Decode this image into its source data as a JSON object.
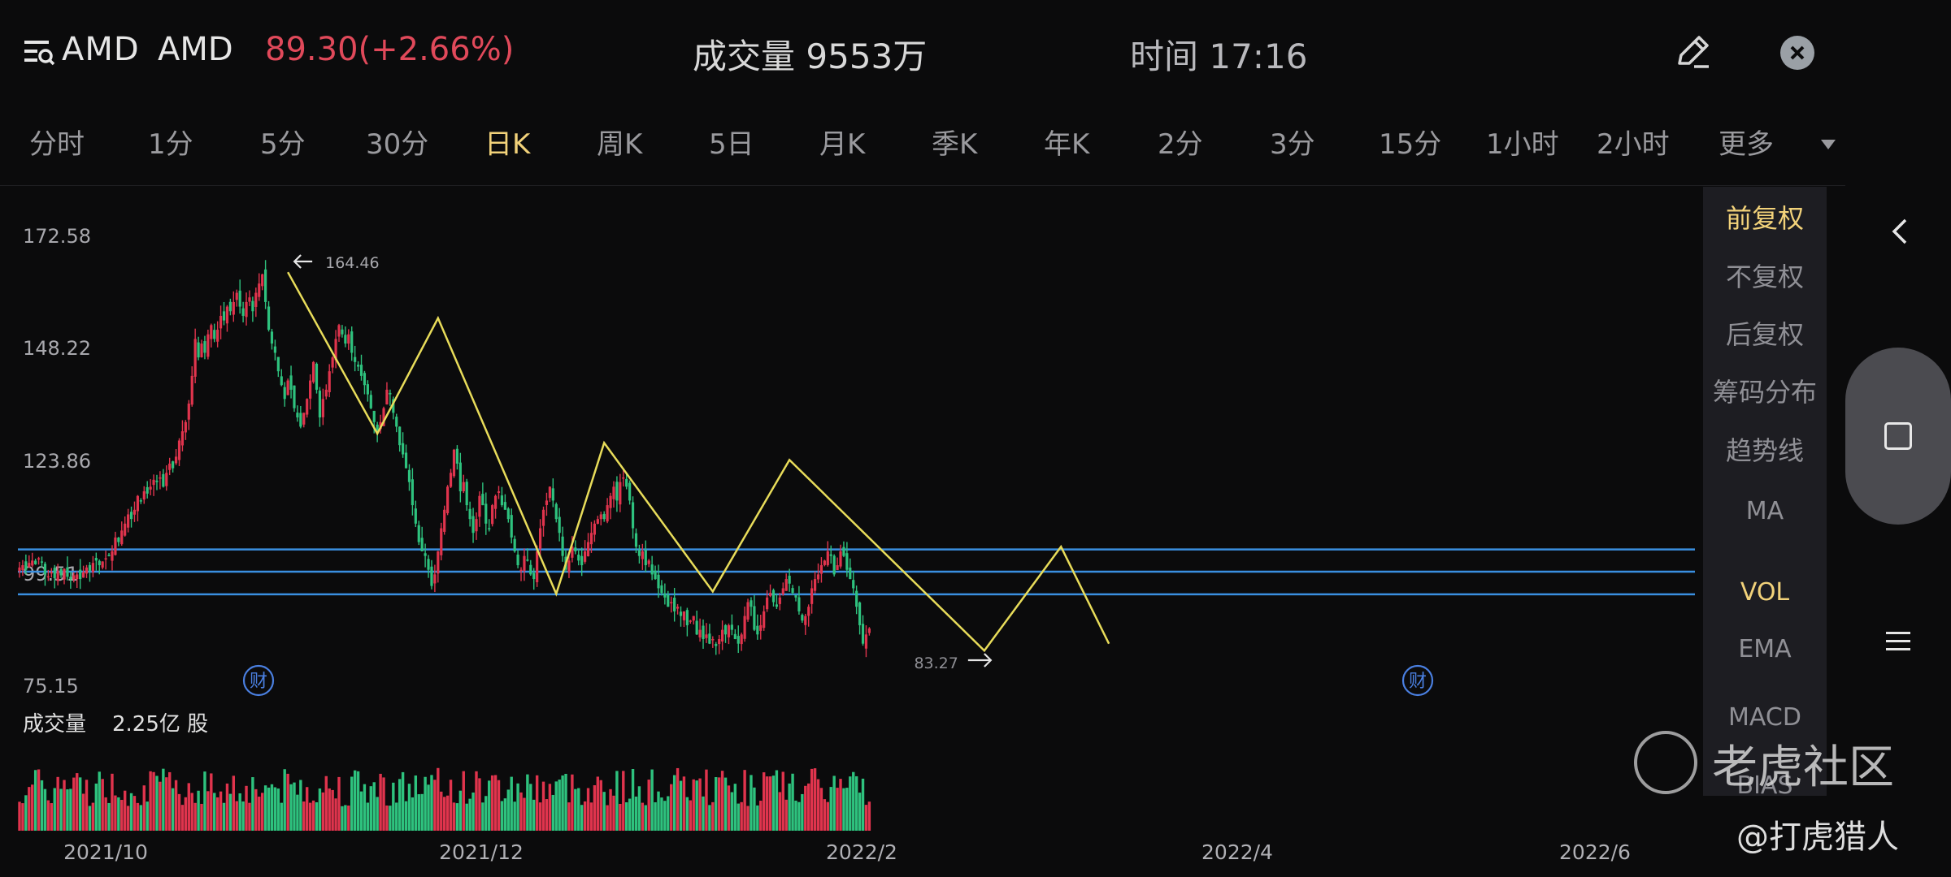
{
  "header": {
    "ticker": "AMD",
    "name": "AMD",
    "price_change": "89.30(+2.66%)",
    "volume_label": "成交量",
    "volume_value": "9553万",
    "time_label": "时间",
    "time_value": "17:16",
    "icons": {
      "menu": "menu-search-icon",
      "edit": "pencil-icon",
      "close": "close-icon"
    }
  },
  "period_tabs": [
    "分时",
    "1分",
    "5分",
    "30分",
    "日K",
    "周K",
    "5日",
    "月K",
    "季K",
    "年K",
    "2分",
    "3分",
    "15分",
    "1小时",
    "2小时",
    "更多"
  ],
  "active_tab": "日K",
  "side_panel": {
    "items": [
      "前复权",
      "不复权",
      "后复权",
      "筹码分布",
      "趋势线"
    ],
    "active": "前复权",
    "indicators": [
      "MA",
      "VOL",
      "EMA",
      "MACD",
      "BIAS"
    ],
    "active_indicator": "VOL"
  },
  "nav": {
    "back": "chevron-left-icon",
    "home": "square-icon",
    "menu": "hamburger-icon"
  },
  "watermark": {
    "brand": "老虎社区",
    "user": "@打虎猎人"
  },
  "colors": {
    "up": "#e0344d",
    "down": "#2ec27e",
    "hline": "#3a8fe0",
    "trend": "#e8dc5a",
    "accent": "#f2d27a"
  },
  "chart_data": {
    "type": "candlestick",
    "y_ticks": [
      "172.58",
      "148.22",
      "123.86",
      "99.51",
      "75.15"
    ],
    "ylim": [
      75.15,
      172.58
    ],
    "x_ticks": [
      "2021/10",
      "2021/12",
      "2022/2",
      "2022/4",
      "2022/6"
    ],
    "max_label": "164.46",
    "min_label": "83.27",
    "volume_label": "成交量",
    "volume_value": "2.25亿 股",
    "earnings_marker": "财",
    "horizontal_levels": [
      104.4,
      99.6,
      94.7
    ],
    "trend_points": [
      [
        84,
        164.46
      ],
      [
        112,
        129.5
      ],
      [
        131,
        154.5
      ],
      [
        168,
        94.8
      ],
      [
        183,
        127.5
      ],
      [
        217,
        95.3
      ],
      [
        241,
        123.8
      ],
      [
        302,
        82.5
      ],
      [
        326,
        105.0
      ],
      [
        341,
        84.0
      ]
    ],
    "prices": [
      100.5,
      101.0,
      100.0,
      101.5,
      102.0,
      101.2,
      102.5,
      101.8,
      99.0,
      98.6,
      99.5,
      98.2,
      99.8,
      98.8,
      100.2,
      98.5,
      98.0,
      98.8,
      99.0,
      98.0,
      99.5,
      100.5,
      99.8,
      101.5,
      102.0,
      101.0,
      101.8,
      102.5,
      103.0,
      104.0,
      107.0,
      106.0,
      108.5,
      110.0,
      112.0,
      111.0,
      113.0,
      116.0,
      115.0,
      117.0,
      116.5,
      118.0,
      119.5,
      119.0,
      120.0,
      118.0,
      121.0,
      123.0,
      122.0,
      124.5,
      128.0,
      130.0,
      132.0,
      136.0,
      142.0,
      150.0,
      146.0,
      149.0,
      147.0,
      151.0,
      153.0,
      150.0,
      152.0,
      155.0,
      154.0,
      157.0,
      156.0,
      158.0,
      160.0,
      157.0,
      155.0,
      158.0,
      159.0,
      156.0,
      160.0,
      162.0,
      164.0,
      158.0,
      152.0,
      149.0,
      147.0,
      143.0,
      140.0,
      137.0,
      141.0,
      139.0,
      135.0,
      133.0,
      131.0,
      134.0,
      137.0,
      141.0,
      145.0,
      139.0,
      133.0,
      137.0,
      139.0,
      143.0,
      146.0,
      150.0,
      153.0,
      151.0,
      149.0,
      151.0,
      147.0,
      145.0,
      144.0,
      142.0,
      140.0,
      138.0,
      135.0,
      132.0,
      130.0,
      132.0,
      135.0,
      139.0,
      138.0,
      134.0,
      131.0,
      127.0,
      125.0,
      122.0,
      119.0,
      114.0,
      110.0,
      106.0,
      104.0,
      103.0,
      100.0,
      96.5,
      99.0,
      104.0,
      109.0,
      113.0,
      118.0,
      121.0,
      126.0,
      123.0,
      117.0,
      119.0,
      114.0,
      111.0,
      108.0,
      111.0,
      116.0,
      114.0,
      110.0,
      109.0,
      114.0,
      116.0,
      117.0,
      114.0,
      113.0,
      111.0,
      107.0,
      104.0,
      101.0,
      100.0,
      103.0,
      102.0,
      99.0,
      98.0,
      104.0,
      109.0,
      113.0,
      115.0,
      118.0,
      115.0,
      111.0,
      108.0,
      103.0,
      100.0,
      102.0,
      105.0,
      104.0,
      102.0,
      101.0,
      104.0,
      106.0,
      108.0,
      110.0,
      111.0,
      112.0,
      111.0,
      114.0,
      116.0,
      118.0,
      115.0,
      119.0,
      120.0,
      118.0,
      115.0,
      109.0,
      105.0,
      103.0,
      104.0,
      101.0,
      102.0,
      99.0,
      98.0,
      96.0,
      95.0,
      94.0,
      92.0,
      93.0,
      91.0,
      92.0,
      90.0,
      91.0,
      88.0,
      89.0,
      90.0,
      86.0,
      87.0,
      85.0,
      86.0,
      84.0,
      85.0,
      83.5,
      85.0,
      87.0,
      86.0,
      88.0,
      87.0,
      85.0,
      84.0,
      86.0,
      90.0,
      93.0,
      92.0,
      87.0,
      86.0,
      88.0,
      91.0,
      94.0,
      95.0,
      93.0,
      92.0,
      94.0,
      96.0,
      98.0,
      97.0,
      95.0,
      94.0,
      91.0,
      89.0,
      90.0,
      92.0,
      96.0,
      98.0,
      99.0,
      101.0,
      102.0,
      104.0,
      103.0,
      99.0,
      101.0,
      104.0,
      103.0,
      100.0,
      98.0,
      96.0,
      92.0,
      88.0,
      84.0,
      86.0,
      87.3
    ],
    "volume_unit": "shares"
  }
}
